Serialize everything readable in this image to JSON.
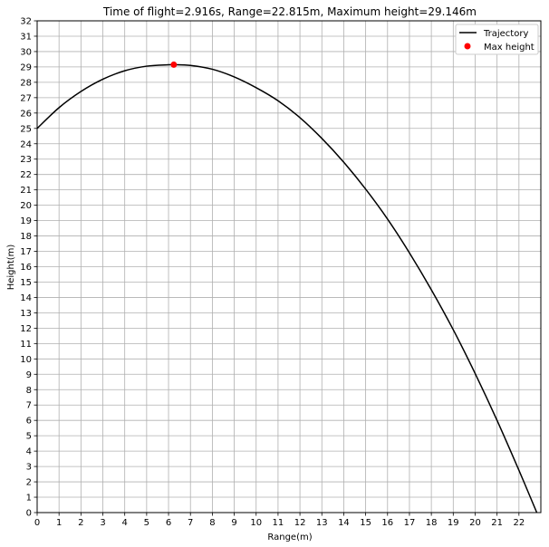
{
  "chart_data": {
    "type": "line",
    "title": "Time of flight=2.916s, Range=22.815m, Maximum height=29.146m",
    "xlabel": "Range(m)",
    "ylabel": "Height(m)",
    "xlim": [
      0,
      23.0
    ],
    "ylim": [
      0,
      32
    ],
    "xticks": [
      "0",
      "1",
      "2",
      "3",
      "4",
      "5",
      "6",
      "7",
      "8",
      "9",
      "10",
      "11",
      "12",
      "13",
      "14",
      "15",
      "16",
      "17",
      "18",
      "19",
      "20",
      "21",
      "22"
    ],
    "yticks": [
      "0",
      "1",
      "2",
      "3",
      "4",
      "5",
      "6",
      "7",
      "8",
      "9",
      "10",
      "11",
      "12",
      "13",
      "14",
      "15",
      "16",
      "17",
      "18",
      "19",
      "20",
      "21",
      "22",
      "23",
      "24",
      "25",
      "26",
      "27",
      "28",
      "29",
      "30",
      "31",
      "32"
    ],
    "grid": true,
    "legend_position": "top-right",
    "series": [
      {
        "name": "Trajectory",
        "kind": "line",
        "color": "#000000",
        "x": [
          0,
          1,
          2,
          3,
          4,
          5,
          6,
          6.24,
          7,
          8,
          9,
          10,
          11,
          12,
          13,
          14,
          15,
          16,
          17,
          18,
          19,
          20,
          21,
          22,
          22.815
        ],
        "y": [
          25.0,
          26.35,
          27.4,
          28.2,
          28.75,
          29.05,
          29.14,
          29.146,
          29.1,
          28.85,
          28.35,
          27.65,
          26.8,
          25.7,
          24.35,
          22.8,
          21.05,
          19.1,
          16.9,
          14.5,
          11.9,
          9.05,
          6.0,
          2.75,
          0.0
        ]
      },
      {
        "name": "Max height",
        "kind": "scatter",
        "color": "#ff0000",
        "x": [
          6.24
        ],
        "y": [
          29.146
        ]
      }
    ]
  }
}
